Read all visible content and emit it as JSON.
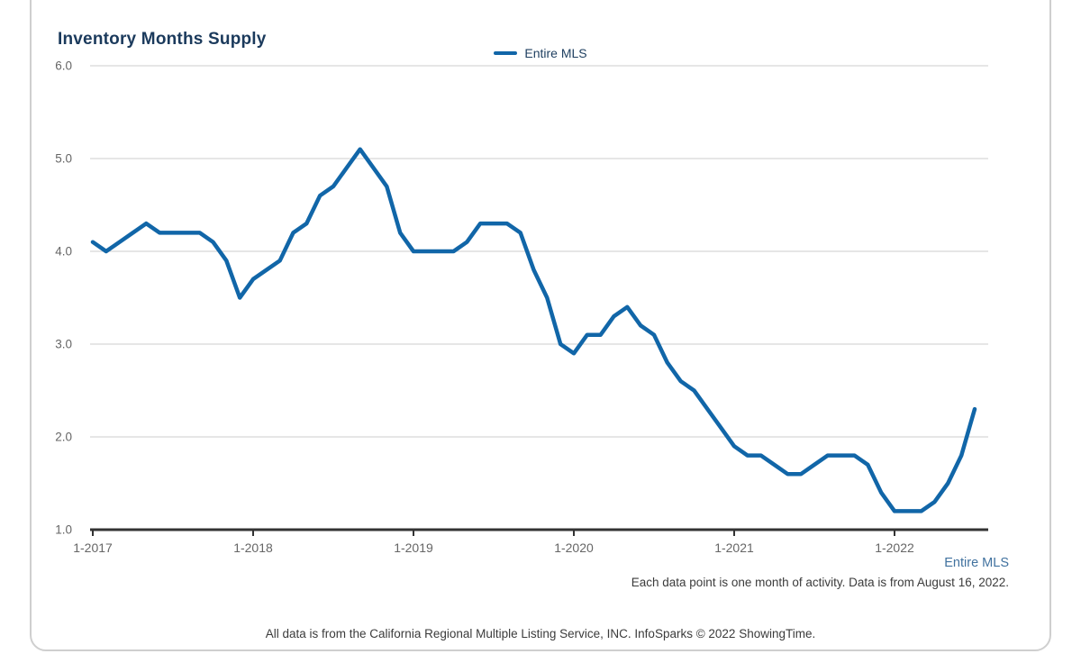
{
  "chart_data": {
    "type": "line",
    "title": "Inventory Months Supply",
    "x_start_month": "Jan 2017",
    "x_end_month": "Jul 2022",
    "x_tick_labels": [
      "1-2017",
      "1-2018",
      "1-2019",
      "1-2020",
      "1-2021",
      "1-2022"
    ],
    "x_tick_month_indices": [
      0,
      12,
      24,
      36,
      48,
      60
    ],
    "y_ticks": [
      1.0,
      2.0,
      3.0,
      4.0,
      5.0,
      6.0
    ],
    "ylim": [
      1.0,
      6.0
    ],
    "grid": true,
    "legend_position": "top-center",
    "series": [
      {
        "name": "Entire MLS",
        "color": "#1166a8",
        "values": [
          4.1,
          4.0,
          4.1,
          4.2,
          4.3,
          4.2,
          4.2,
          4.2,
          4.2,
          4.1,
          3.9,
          3.5,
          3.7,
          3.8,
          3.9,
          4.2,
          4.3,
          4.6,
          4.7,
          4.9,
          5.1,
          4.9,
          4.7,
          4.2,
          4.0,
          4.0,
          4.0,
          4.0,
          4.1,
          4.3,
          4.3,
          4.3,
          4.2,
          3.8,
          3.5,
          3.0,
          2.9,
          3.1,
          3.1,
          3.3,
          3.4,
          3.2,
          3.1,
          2.8,
          2.6,
          2.5,
          2.3,
          2.1,
          1.9,
          1.8,
          1.8,
          1.7,
          1.6,
          1.6,
          1.7,
          1.8,
          1.8,
          1.8,
          1.7,
          1.4,
          1.2,
          1.2,
          1.2,
          1.3,
          1.5,
          1.8,
          2.3
        ]
      }
    ],
    "colors": {
      "axis": "#333333",
      "grid": "#cccccc",
      "tick_text": "#666666"
    }
  },
  "footer": {
    "series_label": "Entire MLS",
    "note": "Each data point is one month of activity. Data is from August 16, 2022.",
    "attribution": "All data is from the California Regional Multiple Listing Service, INC. InfoSparks © 2022 ShowingTime."
  }
}
